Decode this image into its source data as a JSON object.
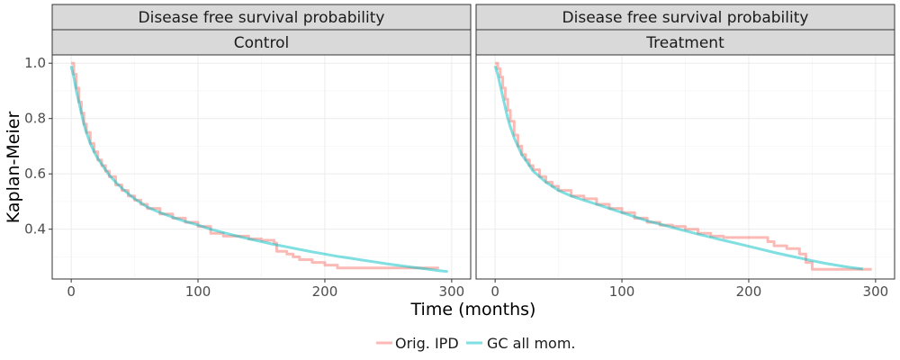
{
  "chart_data": {
    "type": "line",
    "xlabel": "Time (months)",
    "ylabel": "Kaplan-Meier",
    "xlim": [
      -15,
      315
    ],
    "ylim": [
      0.22,
      1.03
    ],
    "x_ticks": [
      0,
      100,
      200,
      300
    ],
    "y_ticks": [
      0.4,
      0.6,
      0.8,
      1.0
    ],
    "x_tick_labels": [
      "0",
      "100",
      "200",
      "300"
    ],
    "y_tick_labels": [
      "0.4",
      "0.6",
      "0.8",
      "1.0"
    ],
    "grid": true,
    "legend_position": "bottom",
    "legend": [
      {
        "label": "Orig. IPD",
        "color": "#f8766d"
      },
      {
        "label": "GC all mom.",
        "color": "#00bfc4"
      }
    ],
    "panels": [
      {
        "strip_top": "Disease free survival probability",
        "strip_bottom": "Control",
        "series": [
          {
            "name": "Orig. IPD",
            "color": "#f8766d",
            "step": true,
            "x": [
              0,
              2,
              4,
              6,
              8,
              10,
              12,
              15,
              18,
              21,
              24,
              27,
              30,
              35,
              40,
              45,
              50,
              55,
              60,
              70,
              80,
              90,
              100,
              110,
              120,
              130,
              140,
              150,
              160,
              162,
              170,
              175,
              180,
              190,
              200,
              210,
              230,
              250,
              270,
              290
            ],
            "y": [
              1.0,
              0.96,
              0.91,
              0.86,
              0.82,
              0.78,
              0.75,
              0.71,
              0.68,
              0.65,
              0.63,
              0.61,
              0.59,
              0.56,
              0.54,
              0.52,
              0.505,
              0.49,
              0.475,
              0.455,
              0.44,
              0.425,
              0.41,
              0.385,
              0.375,
              0.375,
              0.365,
              0.36,
              0.35,
              0.32,
              0.31,
              0.3,
              0.29,
              0.28,
              0.27,
              0.26,
              0.26,
              0.26,
              0.26,
              0.26
            ]
          },
          {
            "name": "GC all mom.",
            "color": "#00bfc4",
            "step": false,
            "x": [
              0,
              2,
              4,
              6,
              8,
              10,
              12,
              15,
              18,
              21,
              24,
              27,
              30,
              35,
              40,
              45,
              50,
              55,
              60,
              70,
              80,
              90,
              100,
              110,
              120,
              130,
              140,
              150,
              160,
              170,
              180,
              190,
              200,
              210,
              220,
              230,
              240,
              250,
              260,
              270,
              280,
              290,
              297
            ],
            "y": [
              0.99,
              0.95,
              0.9,
              0.86,
              0.82,
              0.78,
              0.75,
              0.71,
              0.68,
              0.655,
              0.635,
              0.615,
              0.595,
              0.57,
              0.548,
              0.528,
              0.51,
              0.495,
              0.48,
              0.46,
              0.443,
              0.428,
              0.415,
              0.4,
              0.388,
              0.376,
              0.365,
              0.355,
              0.345,
              0.336,
              0.327,
              0.318,
              0.31,
              0.302,
              0.295,
              0.288,
              0.281,
              0.274,
              0.268,
              0.262,
              0.256,
              0.25,
              0.247
            ]
          }
        ]
      },
      {
        "strip_top": "Disease free survival probability",
        "strip_bottom": "Treatment",
        "series": [
          {
            "name": "Orig. IPD",
            "color": "#f8766d",
            "step": true,
            "x": [
              0,
              2,
              4,
              6,
              8,
              10,
              12,
              15,
              18,
              21,
              24,
              27,
              30,
              35,
              40,
              45,
              50,
              60,
              70,
              80,
              90,
              100,
              110,
              120,
              130,
              140,
              150,
              160,
              170,
              180,
              190,
              200,
              210,
              215,
              220,
              230,
              240,
              245,
              250,
              260,
              280,
              290,
              297
            ],
            "y": [
              1.0,
              0.98,
              0.95,
              0.91,
              0.87,
              0.83,
              0.79,
              0.74,
              0.7,
              0.67,
              0.65,
              0.63,
              0.615,
              0.59,
              0.57,
              0.555,
              0.54,
              0.52,
              0.51,
              0.49,
              0.475,
              0.46,
              0.44,
              0.425,
              0.415,
              0.41,
              0.4,
              0.385,
              0.375,
              0.37,
              0.37,
              0.37,
              0.37,
              0.355,
              0.34,
              0.33,
              0.31,
              0.28,
              0.255,
              0.255,
              0.255,
              0.255,
              0.255
            ]
          },
          {
            "name": "GC all mom.",
            "color": "#00bfc4",
            "step": false,
            "x": [
              0,
              2,
              4,
              6,
              8,
              10,
              12,
              15,
              18,
              21,
              24,
              27,
              30,
              35,
              40,
              45,
              50,
              55,
              60,
              70,
              80,
              90,
              100,
              110,
              120,
              130,
              140,
              150,
              160,
              170,
              180,
              190,
              200,
              210,
              220,
              230,
              240,
              250,
              260,
              270,
              280,
              290
            ],
            "y": [
              0.99,
              0.96,
              0.92,
              0.88,
              0.84,
              0.8,
              0.77,
              0.73,
              0.7,
              0.67,
              0.65,
              0.63,
              0.61,
              0.59,
              0.57,
              0.555,
              0.54,
              0.53,
              0.52,
              0.505,
              0.49,
              0.475,
              0.46,
              0.445,
              0.43,
              0.418,
              0.406,
              0.394,
              0.382,
              0.371,
              0.36,
              0.349,
              0.338,
              0.327,
              0.316,
              0.306,
              0.296,
              0.286,
              0.277,
              0.269,
              0.262,
              0.256
            ]
          }
        ]
      }
    ]
  }
}
